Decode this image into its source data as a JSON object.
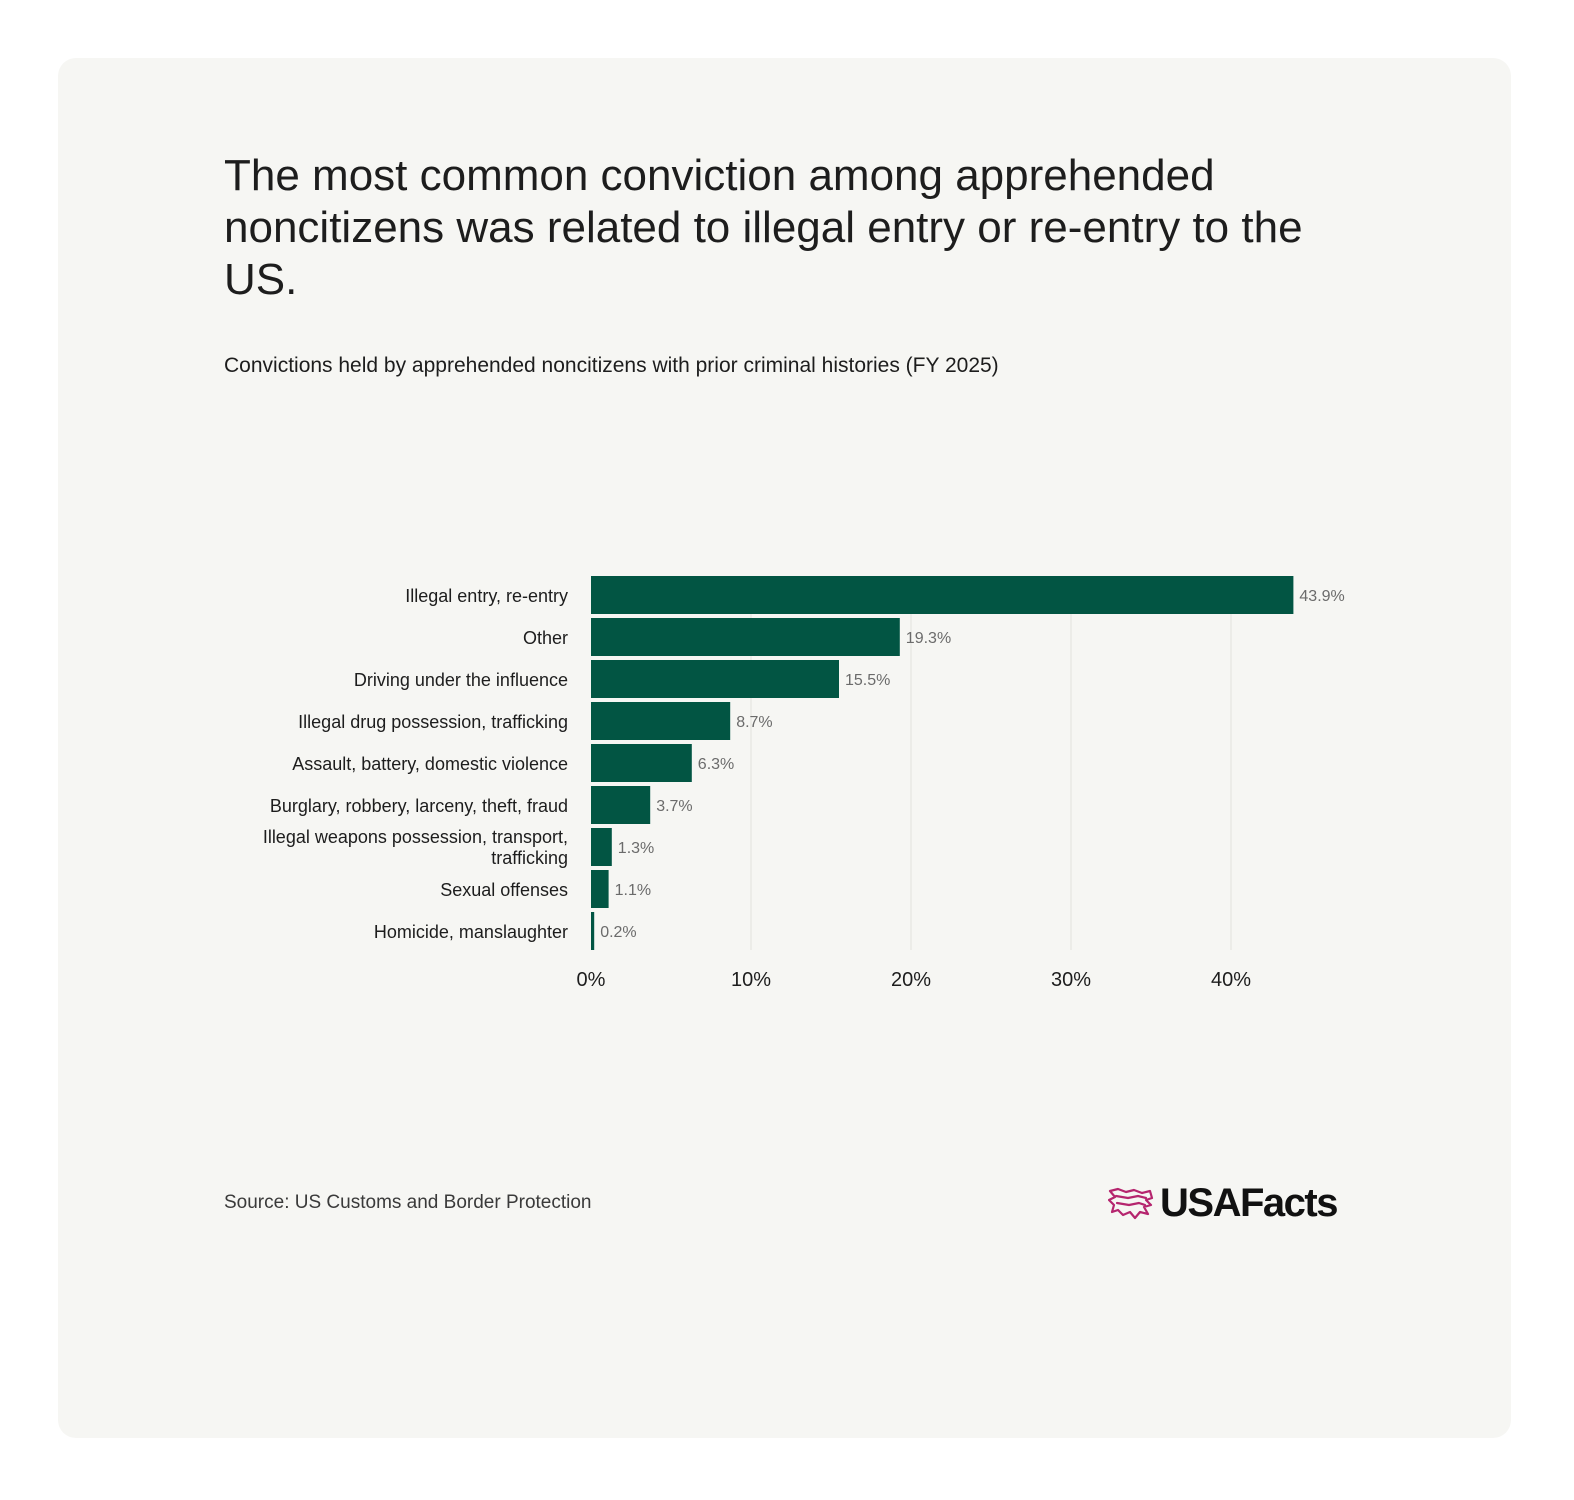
{
  "title": "The most common conviction among apprehended noncitizens was related to illegal entry or re-entry to the US.",
  "subtitle": "Convictions held by apprehended noncitizens with prior criminal histories (FY 2025)",
  "source": "Source: US Customs and Border Protection",
  "logo": {
    "text": "USAFacts",
    "icon": "usa-flag-logo-icon",
    "icon_color": "#b5256e"
  },
  "colors": {
    "bar": "#025543",
    "grid": "#e2e2de",
    "value_label": "#6b6b6b",
    "tick": "#1d1d1d"
  },
  "chart_data": {
    "type": "bar",
    "orientation": "horizontal",
    "categories": [
      "Illegal entry, re-entry",
      "Other",
      "Driving under the influence",
      "Illegal drug possession, trafficking",
      "Assault, battery, domestic violence",
      "Burglary, robbery, larceny, theft, fraud",
      "Illegal weapons possession, transport, trafficking",
      "Sexual offenses",
      "Homicide, manslaughter"
    ],
    "values": [
      43.9,
      19.3,
      15.5,
      8.7,
      6.3,
      3.7,
      1.3,
      1.1,
      0.2
    ],
    "value_labels": [
      "43.9%",
      "19.3%",
      "15.5%",
      "8.7%",
      "6.3%",
      "3.7%",
      "1.3%",
      "1.1%",
      "0.2%"
    ],
    "xticks": [
      0,
      10,
      20,
      30,
      40
    ],
    "xtick_labels": [
      "0%",
      "10%",
      "20%",
      "30%",
      "40%"
    ],
    "xlim": [
      0,
      45
    ],
    "grid": true,
    "legend": false
  }
}
